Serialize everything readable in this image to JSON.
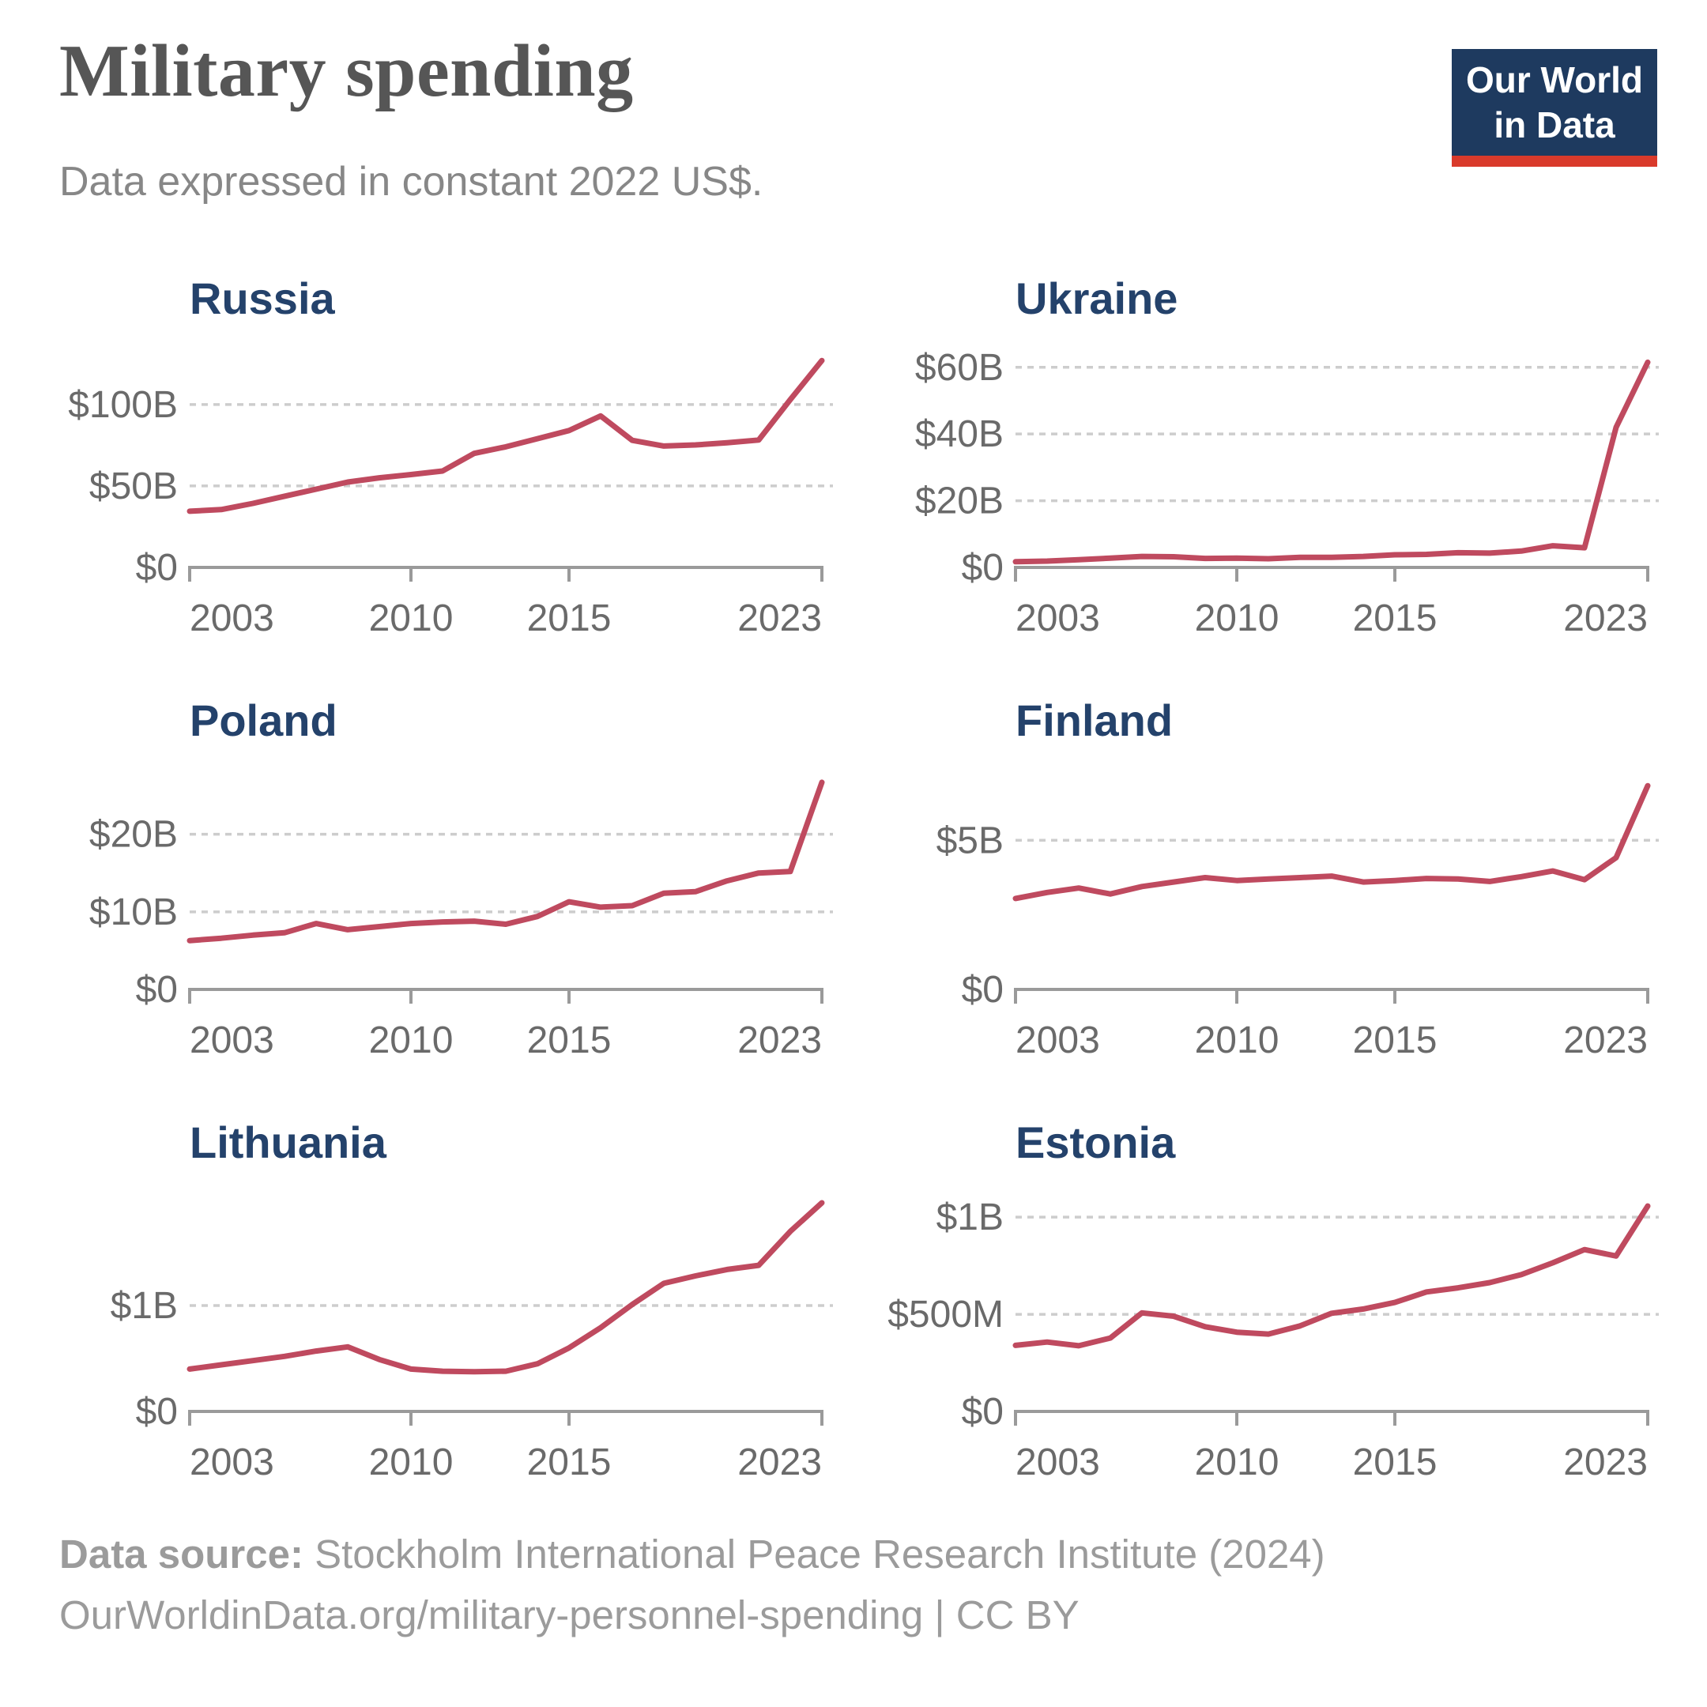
{
  "header": {
    "title": "Military spending",
    "subtitle": "Data expressed in constant 2022 US$.",
    "logo": {
      "line1": "Our World",
      "line2": "in Data"
    }
  },
  "footer": {
    "source_label": "Data source:",
    "source_text": " Stockholm International Peace Research Institute (2024)",
    "link_text": "OurWorldinData.org/military-personnel-spending | CC BY"
  },
  "colors": {
    "line": "#bf4a5f",
    "axis": "#9a9a9a",
    "gridline": "#cdcdcd",
    "axis_label": "#6a6a6a",
    "panel_title": "#24426b",
    "logo_bg": "#1e3a5f",
    "logo_accent": "#d93a2b"
  },
  "chart_data": {
    "type": "line",
    "title": "Military spending",
    "subtitle": "Data expressed in constant 2022 US$.",
    "grid": "dotted horizontal gridlines",
    "legend_position": "none (small multiples, one series per panel)",
    "x_range": [
      2003,
      2023
    ],
    "years": [
      2003,
      2004,
      2005,
      2006,
      2007,
      2008,
      2009,
      2010,
      2011,
      2012,
      2013,
      2014,
      2015,
      2016,
      2017,
      2018,
      2019,
      2020,
      2021,
      2022,
      2023
    ],
    "x_ticks": [
      {
        "year": 2003,
        "label": "2003",
        "anchor": "start"
      },
      {
        "year": 2010,
        "label": "2010",
        "anchor": "middle"
      },
      {
        "year": 2015,
        "label": "2015",
        "anchor": "middle"
      },
      {
        "year": 2023,
        "label": "2023",
        "anchor": "end"
      }
    ],
    "panels": [
      {
        "title": "Russia",
        "unit": "billion constant 2022 US$",
        "ylim": [
          0,
          130
        ],
        "y_ticks": [
          {
            "value": 0,
            "label": "$0"
          },
          {
            "value": 50,
            "label": "$50B"
          },
          {
            "value": 100,
            "label": "$100B"
          }
        ],
        "values": [
          34.5,
          35.5,
          39.3,
          43.7,
          48,
          52.4,
          55,
          57,
          59.2,
          70,
          74,
          79,
          84,
          93,
          78,
          74.5,
          75.2,
          76.5,
          78.2,
          103,
          127
        ]
      },
      {
        "title": "Ukraine",
        "unit": "billion constant 2022 US$",
        "ylim": [
          0,
          63.5
        ],
        "y_ticks": [
          {
            "value": 0,
            "label": "$0"
          },
          {
            "value": 20,
            "label": "$20B"
          },
          {
            "value": 40,
            "label": "$40B"
          },
          {
            "value": 60,
            "label": "$60B"
          }
        ],
        "values": [
          1.7,
          1.9,
          2.3,
          2.8,
          3.3,
          3.2,
          2.7,
          2.8,
          2.6,
          3.0,
          3.0,
          3.3,
          3.8,
          3.9,
          4.4,
          4.3,
          4.9,
          6.5,
          5.9,
          42,
          61.5
        ]
      },
      {
        "title": "Poland",
        "unit": "billion constant 2022 US$",
        "ylim": [
          0,
          27.3
        ],
        "y_ticks": [
          {
            "value": 0,
            "label": "$0"
          },
          {
            "value": 10,
            "label": "$10B"
          },
          {
            "value": 20,
            "label": "$20B"
          }
        ],
        "values": [
          6.3,
          6.6,
          7.0,
          7.3,
          8.5,
          7.7,
          8.1,
          8.5,
          8.7,
          8.8,
          8.4,
          9.4,
          11.3,
          10.6,
          10.8,
          12.4,
          12.6,
          14.0,
          15.0,
          15.2,
          26.7
        ]
      },
      {
        "title": "Finland",
        "unit": "billion constant 2022 US$",
        "ylim": [
          0,
          7.1
        ],
        "y_ticks": [
          {
            "value": 0,
            "label": "$0"
          },
          {
            "value": 5,
            "label": "$5B"
          }
        ],
        "values": [
          3.05,
          3.25,
          3.4,
          3.2,
          3.45,
          3.6,
          3.75,
          3.65,
          3.7,
          3.75,
          3.8,
          3.6,
          3.65,
          3.72,
          3.7,
          3.62,
          3.78,
          3.97,
          3.68,
          4.42,
          6.83
        ]
      },
      {
        "title": "Lithuania",
        "unit": "billion constant 2022 US$",
        "ylim": [
          0,
          2.0
        ],
        "y_ticks": [
          {
            "value": 0,
            "label": "$0"
          },
          {
            "value": 1,
            "label": "$1B"
          }
        ],
        "values": [
          0.4,
          0.44,
          0.48,
          0.52,
          0.57,
          0.61,
          0.49,
          0.4,
          0.38,
          0.375,
          0.38,
          0.45,
          0.6,
          0.79,
          1.01,
          1.21,
          1.28,
          1.34,
          1.38,
          1.7,
          1.97
        ]
      },
      {
        "title": "Estonia",
        "unit": "million constant 2022 US$",
        "ylim": [
          0,
          1090
        ],
        "y_ticks": [
          {
            "value": 0,
            "label": "$0"
          },
          {
            "value": 500,
            "label": "$500M"
          },
          {
            "value": 1000,
            "label": "$1B"
          }
        ],
        "values": [
          340,
          357,
          338,
          378,
          507,
          490,
          436,
          408,
          398,
          440,
          505,
          527,
          561,
          615,
          636,
          663,
          704,
          765,
          833,
          800,
          1057
        ]
      }
    ]
  }
}
